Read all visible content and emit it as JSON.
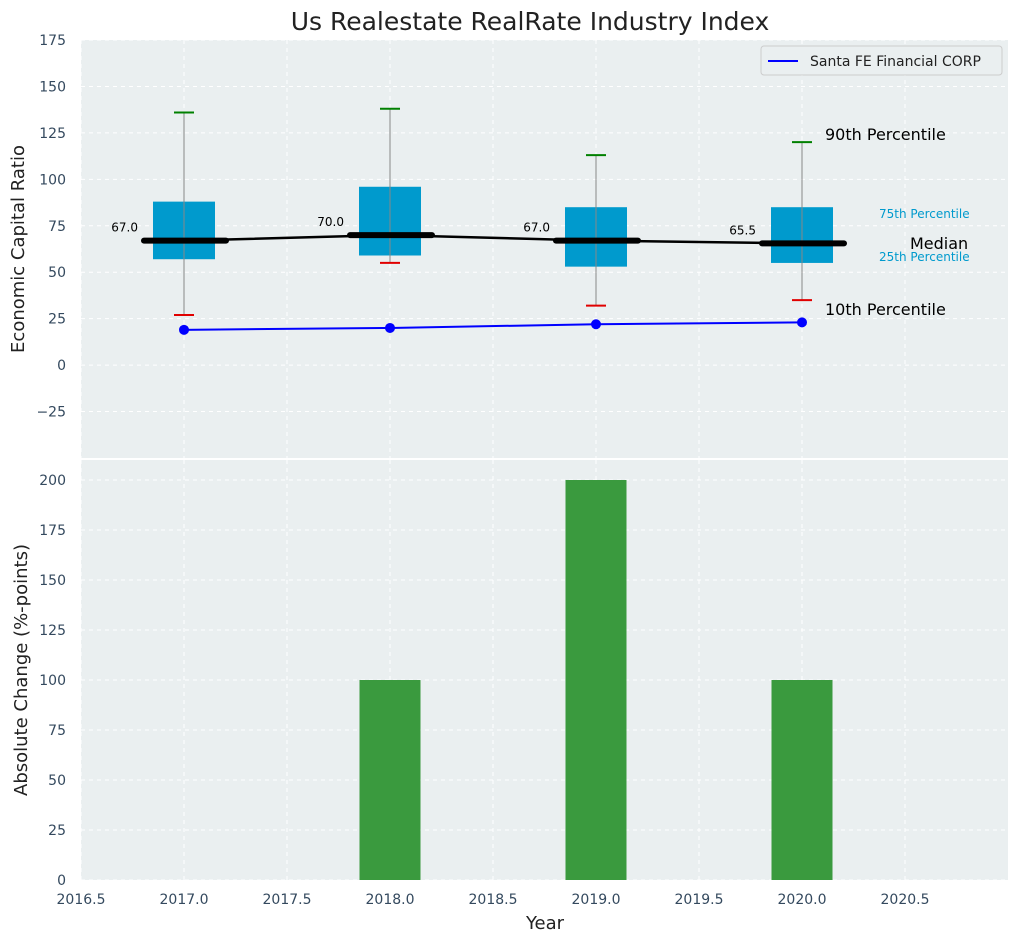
{
  "chart_data": [
    {
      "type": "box-line",
      "title": "Us Realestate RealRate Industry Index",
      "ylabel": "Economic Capital Ratio",
      "ylim": [
        -50,
        175
      ],
      "yticks": [
        -25,
        0,
        25,
        50,
        75,
        100,
        125,
        150,
        175
      ],
      "xlim": [
        2016.5,
        2021.0
      ],
      "grid": true,
      "legend": {
        "position": "top-right",
        "entries": [
          "Santa FE Financial CORP"
        ]
      },
      "boxes": [
        {
          "x": 2017,
          "p10": 27,
          "p25": 57,
          "median": 67.0,
          "median_label": "67.0",
          "p75": 88,
          "p90": 136
        },
        {
          "x": 2018,
          "p10": 55,
          "p25": 59,
          "median": 70.0,
          "median_label": "70.0",
          "p75": 96,
          "p90": 138
        },
        {
          "x": 2019,
          "p10": 32,
          "p25": 53,
          "median": 67.0,
          "median_label": "67.0",
          "p75": 85,
          "p90": 113
        },
        {
          "x": 2020,
          "p10": 35,
          "p25": 55,
          "median": 65.5,
          "median_label": "65.5",
          "p75": 85,
          "p90": 120
        }
      ],
      "series": [
        {
          "name": "Santa FE Financial CORP",
          "color": "#0000ff",
          "x": [
            2017,
            2018,
            2019,
            2020
          ],
          "values": [
            19,
            20,
            22,
            23
          ]
        }
      ],
      "annotations": {
        "p90": "90th Percentile",
        "median": "Median",
        "p75": "75th Percentile",
        "p25": "25th Percentile",
        "p10": "10th Percentile"
      }
    },
    {
      "type": "bar",
      "xlabel": "Year",
      "ylabel": "Absolute Change (%-points)",
      "ylim": [
        0,
        210
      ],
      "yticks": [
        0,
        25,
        50,
        75,
        100,
        125,
        150,
        175,
        200
      ],
      "xlim": [
        2016.5,
        2021.0
      ],
      "xticks": [
        "2016.5",
        "2017.0",
        "2017.5",
        "2018.0",
        "2018.5",
        "2019.0",
        "2019.5",
        "2020.0",
        "2020.5"
      ],
      "x": [
        2017,
        2018,
        2019,
        2020
      ],
      "values": [
        0,
        100,
        200,
        100
      ],
      "color": "#3a9a3e"
    }
  ],
  "colors": {
    "box": "#009acd",
    "median": "#000000",
    "whisker_top": "#008000",
    "whisker_bottom": "#e00000",
    "grid_bg": "#eaeff0"
  }
}
